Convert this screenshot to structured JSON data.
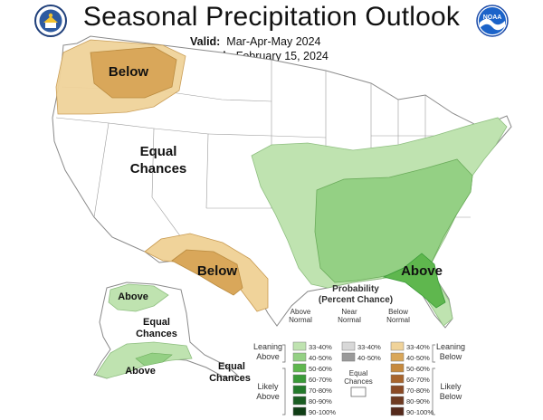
{
  "header": {
    "title": "Seasonal Precipitation Outlook",
    "valid_label": "Valid:",
    "valid_value": "Mar-Apr-May 2024",
    "issued_label": "Issued:",
    "issued_value": "February 15, 2024"
  },
  "logos": {
    "left": "doc-seal-icon",
    "right": "noaa-logo-icon"
  },
  "map": {
    "labels": {
      "below_nw": "Below",
      "equal_line1": "Equal",
      "equal_line2": "Chances",
      "below_sw": "Below",
      "above_se": "Above",
      "ak_above_1": "Above",
      "ak_equal_line1": "Equal",
      "ak_equal_line2": "Chances",
      "ak_above_2": "Above",
      "ak_equal2_line1": "Equal",
      "ak_equal2_line2": "Chances"
    },
    "colors": {
      "above": [
        "#bfe3b0",
        "#94d084",
        "#5fb74e",
        "#3a9a38",
        "#237a2b",
        "#1a5d22",
        "#103e16"
      ],
      "near": [
        "#d8d8d8",
        "#9a9a9a"
      ],
      "below": [
        "#f0d39a",
        "#d9a75a",
        "#c68a3f",
        "#a8652d",
        "#8a4a25",
        "#6e3a21",
        "#55291b"
      ],
      "equal": "#ffffff"
    }
  },
  "legend": {
    "title_line1": "Probability",
    "title_line2": "(Percent Chance)",
    "col_above_line1": "Above",
    "col_above_line2": "Normal",
    "col_near_line1": "Near",
    "col_near_line2": "Normal",
    "col_below_line1": "Below",
    "col_below_line2": "Normal",
    "leaning_above_line1": "Leaning",
    "leaning_above_line2": "Above",
    "likely_above_line1": "Likely",
    "likely_above_line2": "Above",
    "leaning_below_line1": "Leaning",
    "leaning_below_line2": "Below",
    "likely_below_line1": "Likely",
    "likely_below_line2": "Below",
    "equal_line1": "Equal",
    "equal_line2": "Chances",
    "above_ranges": [
      "33-40%",
      "40-50%",
      "50-60%",
      "60-70%",
      "70-80%",
      "80-90%",
      "90-100%"
    ],
    "near_ranges": [
      "33-40%",
      "40-50%"
    ],
    "below_ranges": [
      "33-40%",
      "40-50%",
      "50-60%",
      "60-70%",
      "70-80%",
      "80-90%",
      "90-100%"
    ]
  }
}
